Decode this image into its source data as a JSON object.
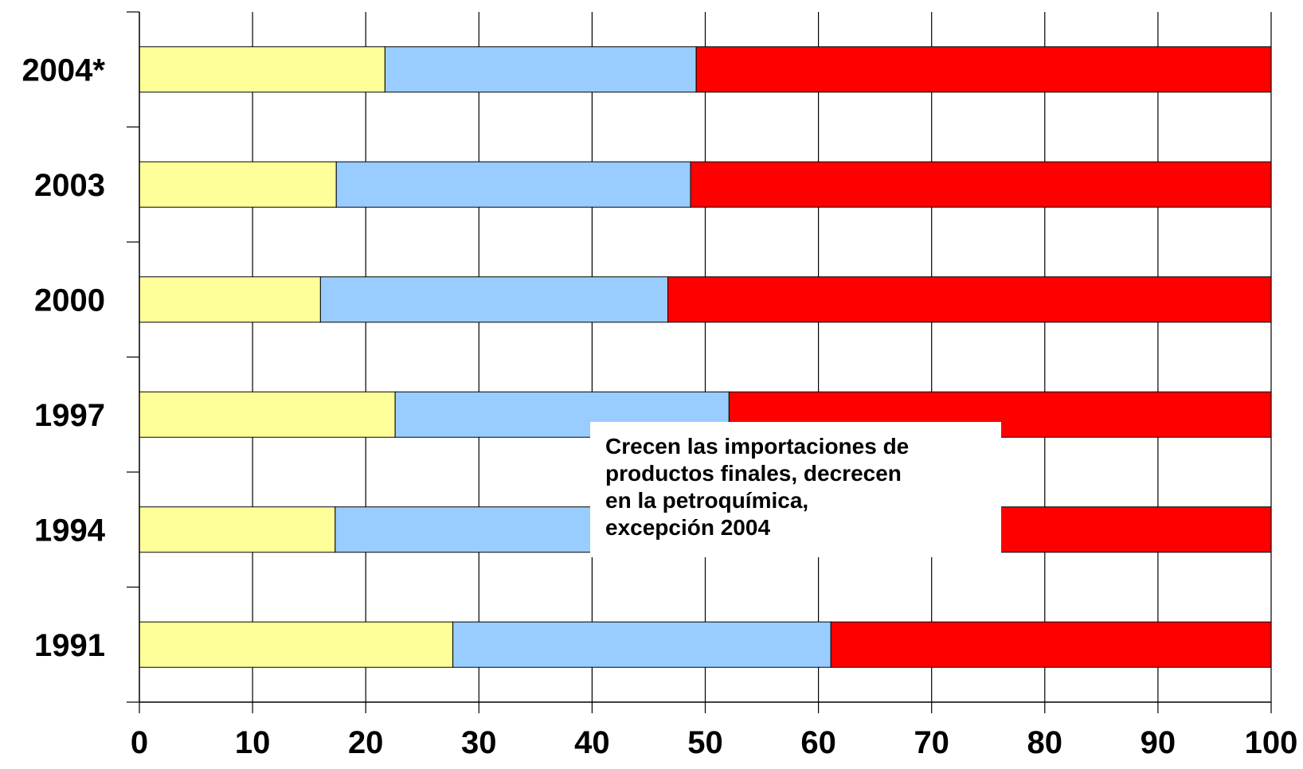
{
  "chart_data": {
    "type": "bar",
    "orientation": "horizontal",
    "stacked": true,
    "categories": [
      "2004*",
      "2003",
      "2000",
      "1997",
      "1994",
      "1991"
    ],
    "series": [
      {
        "color": "#ffff99",
        "values": [
          21.7,
          17.4,
          16.0,
          22.6,
          17.3,
          27.7
        ]
      },
      {
        "color": "#99ccff",
        "values": [
          27.5,
          31.3,
          30.7,
          29.5,
          26.7,
          33.4
        ]
      },
      {
        "color": "#ff0000",
        "values": [
          50.8,
          51.3,
          53.3,
          47.9,
          56.0,
          38.9
        ]
      }
    ],
    "xlim": [
      0,
      100
    ],
    "xticks": [
      "0",
      "10",
      "20",
      "30",
      "40",
      "50",
      "60",
      "70",
      "80",
      "90",
      "100"
    ],
    "grid": "vertical",
    "annotation": {
      "lines": [
        "Crecen las importaciones de",
        "productos finales, decrecen",
        "en la petroquímica,",
        "excepción 2004"
      ]
    }
  }
}
